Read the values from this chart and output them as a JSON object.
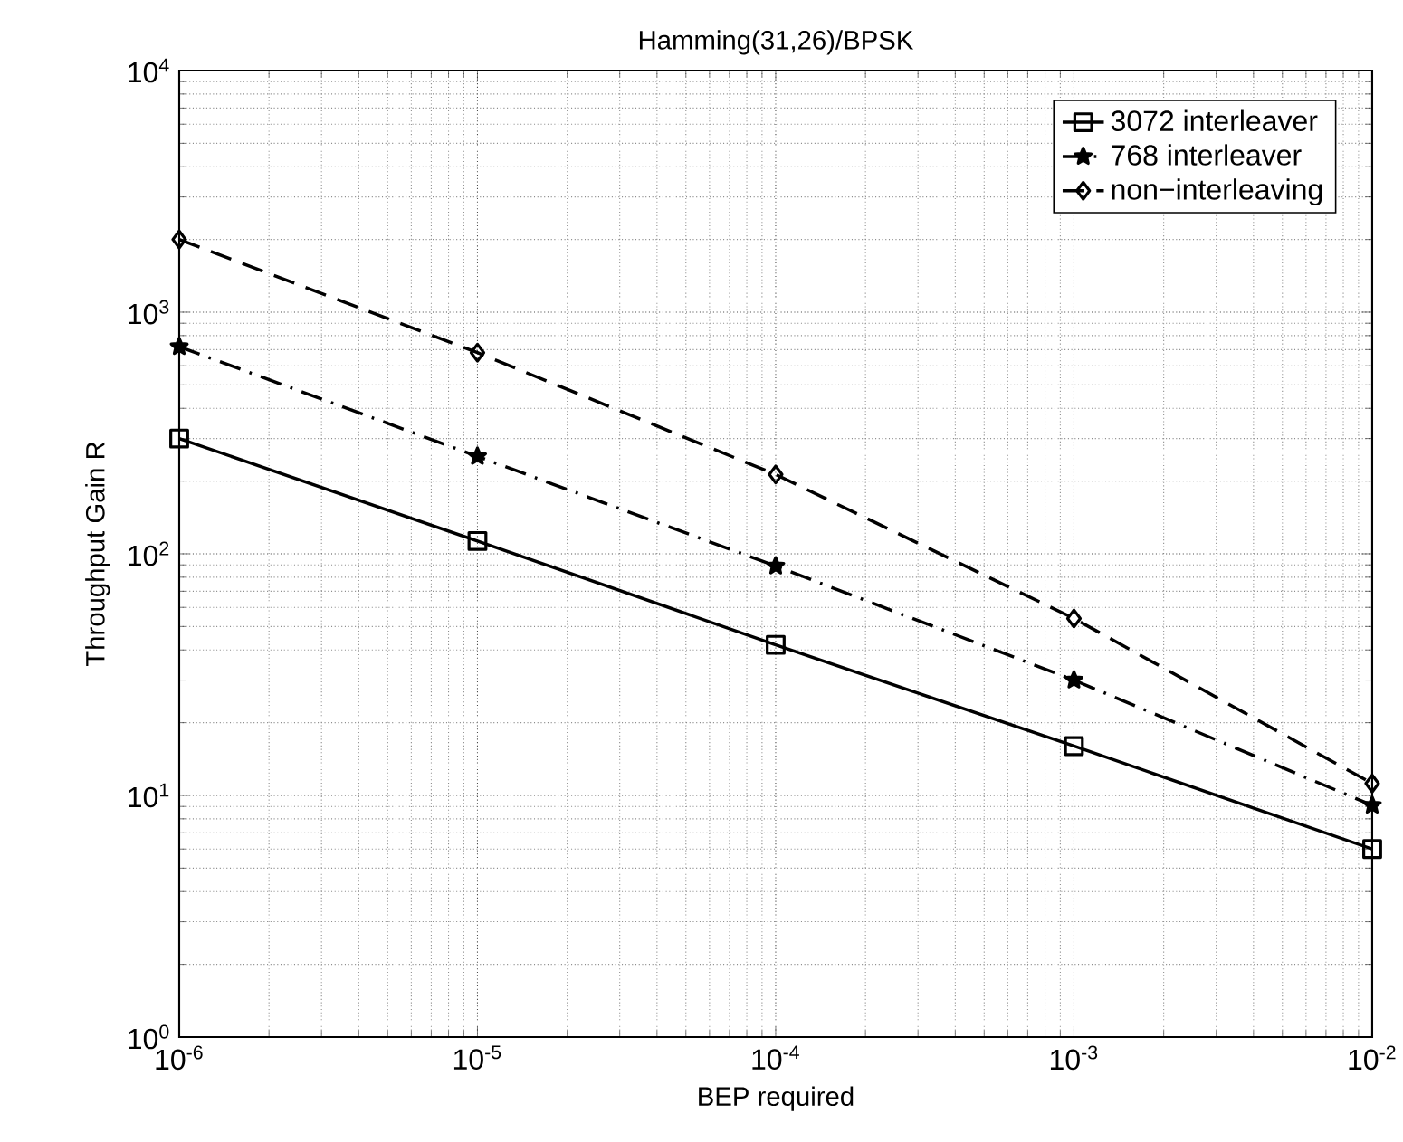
{
  "chart_data": {
    "type": "line",
    "title": "Hamming(31,26)/BPSK",
    "xlabel": "BEP required",
    "ylabel": "Throughput Gain R",
    "log": "xy",
    "grid": true,
    "legend": "top right",
    "x": [
      1e-06,
      1e-05,
      0.0001,
      0.001,
      0.01
    ],
    "xlim": [
      1e-06,
      0.01
    ],
    "xticks": [
      {
        "value": 1e-06,
        "label": "10$^{-6}$"
      },
      {
        "value": 1e-05,
        "label": "10$^{-5}$"
      },
      {
        "value": 0.0001,
        "label": "10$^{-4}$"
      },
      {
        "value": 0.001,
        "label": "10$^{-3}$"
      },
      {
        "value": 0.01,
        "label": "10$^{-2}$"
      }
    ],
    "ylim": [
      1,
      10000
    ],
    "yticks": [
      {
        "value": 1,
        "label": "10$^{0}$"
      },
      {
        "value": 10,
        "label": "10$^{1}$"
      },
      {
        "value": 100,
        "label": "10$^{2}$"
      },
      {
        "value": 1000,
        "label": "10$^{3}$"
      },
      {
        "value": 10000,
        "label": "10$^{4}$"
      }
    ],
    "series": [
      {
        "name": "3072 interleaver",
        "color": "#000000",
        "marker": "square",
        "line_style": "solid",
        "values": [
          300,
          113,
          42,
          16,
          6
        ]
      },
      {
        "name": "768 interleaver",
        "color": "#000000",
        "marker": "star",
        "line_style": "dashdot",
        "values": [
          720,
          253,
          89,
          30,
          9.1
        ]
      },
      {
        "name": "non−interleaving",
        "color": "#000000",
        "marker": "diamond",
        "line_style": "dashed",
        "values": [
          2000,
          680,
          213,
          54,
          11.2
        ]
      }
    ]
  }
}
